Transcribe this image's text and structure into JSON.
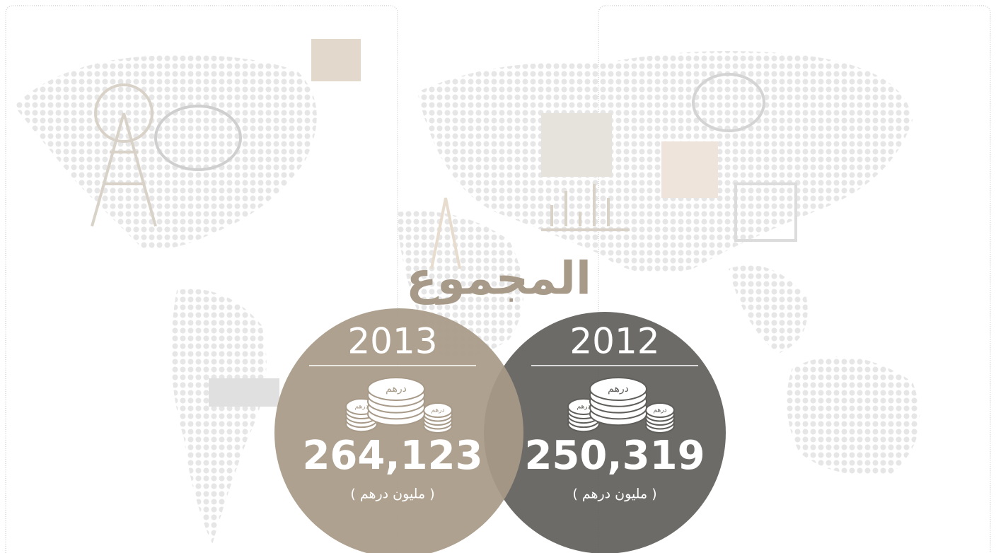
{
  "title": "المجموع",
  "circles": [
    {
      "year": "2013",
      "coin_labels": [
        "درهم",
        "درهم",
        "درهم"
      ],
      "total": "264,123",
      "unit": "( مليون درهم )"
    },
    {
      "year": "2012",
      "coin_labels": [
        "درهم",
        "درهم",
        "درهم"
      ],
      "total": "250,319",
      "unit": "( مليون درهم )"
    }
  ]
}
